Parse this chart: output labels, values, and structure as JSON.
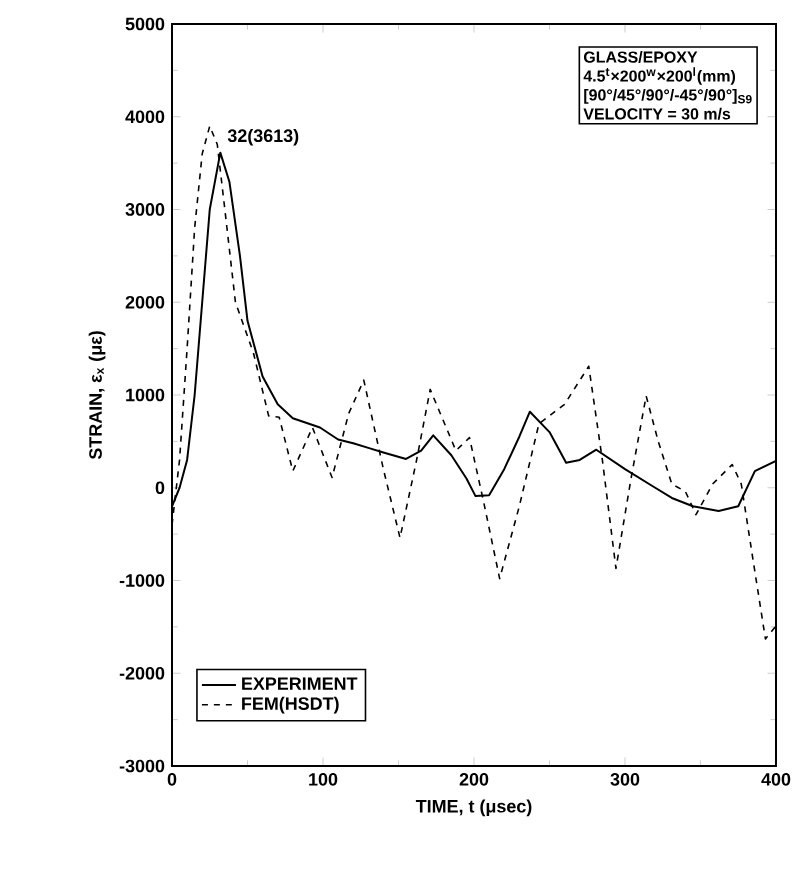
{
  "chart_data": {
    "type": "line",
    "xlabel": "TIME, t (μsec)",
    "ylabel": "STRAIN, ε$_{x}$ (με)",
    "xlim": [
      0,
      400
    ],
    "ylim": [
      -3000,
      5000
    ],
    "xticks": [
      0,
      100,
      200,
      300,
      400
    ],
    "yticks": [
      -3000,
      -2000,
      -1000,
      0,
      1000,
      2000,
      3000,
      4000,
      5000
    ],
    "grid": false,
    "legend": "bottom left",
    "marker": "none",
    "annotations": [
      {
        "text": "32(3613)",
        "x": 32,
        "y": 3613
      },
      "GLASS/EPOXY",
      "4.5$^{t}$×200$^{w}$×200$^{l}$(mm)",
      "[90°/45°/90°/-45°/90°]$_{S9}$",
      "VELOCITY = 30 m/s"
    ],
    "series": [
      {
        "name": "EXPERIMENT",
        "color": "#000000",
        "line_style": "solid",
        "x": [
          0,
          5,
          10,
          15,
          20,
          25,
          32,
          38,
          45,
          50,
          55,
          60,
          70,
          80,
          98,
          110,
          120,
          130,
          140,
          155,
          165,
          173,
          185,
          195,
          201,
          210,
          220,
          230,
          237,
          250,
          261,
          270,
          281,
          300,
          320,
          331,
          345,
          362,
          375,
          386,
          400
        ],
        "values": [
          -200,
          0,
          300,
          1000,
          2000,
          3000,
          3613,
          3300,
          2500,
          1800,
          1500,
          1200,
          900,
          750,
          650,
          520,
          480,
          430,
          380,
          310,
          400,
          565,
          350,
          100,
          -90,
          -80,
          200,
          550,
          820,
          600,
          270,
          300,
          410,
          200,
          0,
          -110,
          -200,
          -250,
          -200,
          180,
          290
        ]
      },
      {
        "name": "FEM(HSDT)",
        "color": "#000000",
        "line_style": "dashed",
        "x": [
          0,
          5,
          10,
          15,
          20,
          25,
          30,
          35,
          42,
          54,
          64,
          71,
          80,
          93,
          106,
          117,
          127,
          140,
          151,
          162,
          171,
          188,
          197,
          207,
          217,
          230,
          243,
          260,
          276,
          285,
          294,
          304,
          314,
          322,
          331,
          340,
          347,
          358,
          371,
          377,
          385,
          393,
          400
        ],
        "values": [
          -400,
          300,
          1500,
          2800,
          3600,
          3900,
          3700,
          3000,
          2000,
          1450,
          775,
          760,
          180,
          650,
          110,
          800,
          1160,
          200,
          -540,
          300,
          1060,
          400,
          540,
          -200,
          -980,
          -200,
          690,
          900,
          1310,
          300,
          -870,
          100,
          990,
          500,
          40,
          -40,
          -290,
          40,
          250,
          40,
          -800,
          -1630,
          -1490
        ]
      }
    ]
  }
}
